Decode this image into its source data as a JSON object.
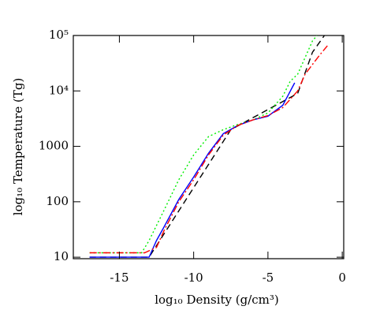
{
  "chart_data": {
    "type": "line",
    "xlabel": "log₁₀ Density (g/cm³)",
    "ylabel": "log₁₀ Temperature (Tg)",
    "xlim": [
      -18.1,
      0.1
    ],
    "xticks": [
      -15,
      -10,
      -5,
      0
    ],
    "ylim": [
      9.4,
      100000
    ],
    "ylog": true,
    "yticks": [
      10,
      100,
      1000,
      {
        "value": 10000,
        "label": "10⁴"
      },
      {
        "value": 100000,
        "label": "10⁵"
      }
    ],
    "series": [
      {
        "color": "#000000",
        "dash": "dashed",
        "x": [
          -17,
          -13,
          -7.5,
          -3,
          -2,
          -1.2
        ],
        "values": [
          10,
          10,
          2000,
          9000,
          50000,
          100000
        ]
      },
      {
        "color": "#00ee00",
        "dash": "dotted",
        "x": [
          -17,
          -13.5,
          -13,
          -12,
          -11,
          -10,
          -9,
          -8,
          -7,
          -6,
          -5,
          -4,
          -3.5,
          -3,
          -2.5,
          -2,
          -1.7
        ],
        "values": [
          12,
          12,
          20,
          70,
          250,
          700,
          1500,
          2000,
          2500,
          3000,
          4000,
          8000,
          15000,
          20000,
          40000,
          80000,
          100000
        ]
      },
      {
        "color": "#0000ff",
        "dash": "solid",
        "x": [
          -17,
          -13,
          -12.5,
          -12,
          -11,
          -10,
          -9,
          -8,
          -7,
          -6,
          -5,
          -4,
          -3.2
        ],
        "values": [
          10,
          10,
          20,
          35,
          110,
          280,
          750,
          1700,
          2400,
          3000,
          3500,
          5500,
          14000
        ]
      },
      {
        "color": "#ff0000",
        "dash": "dashdot",
        "x": [
          -17,
          -13.3,
          -12.5,
          -12,
          -11,
          -10,
          -9,
          -8,
          -7,
          -6,
          -5,
          -4,
          -3,
          -2.5,
          -2,
          -1.5,
          -1
        ],
        "values": [
          12,
          12,
          15,
          30,
          100,
          250,
          700,
          1600,
          2400,
          3000,
          3600,
          5000,
          10000,
          20000,
          30000,
          45000,
          65000
        ]
      }
    ]
  }
}
